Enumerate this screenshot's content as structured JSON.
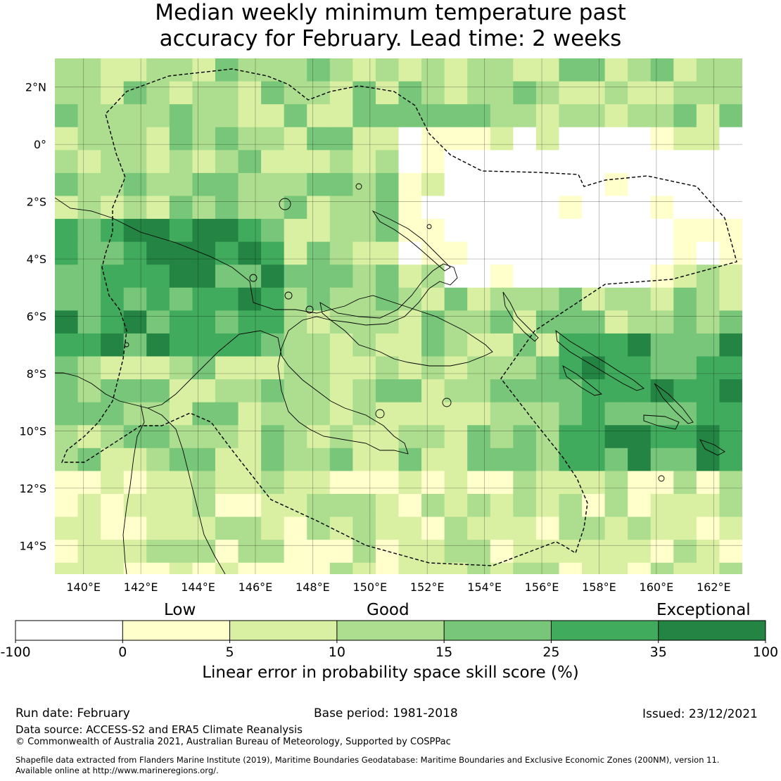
{
  "title": {
    "line1": "Median weekly minimum temperature past",
    "line2": "accuracy for February. Lead time: 2 weeks"
  },
  "map": {
    "lon_ticks": [
      "140°E",
      "142°E",
      "144°E",
      "146°E",
      "148°E",
      "150°E",
      "152°E",
      "154°E",
      "156°E",
      "158°E",
      "160°E",
      "162°E"
    ],
    "lat_ticks": [
      "2°N",
      "0°",
      "2°S",
      "4°S",
      "6°S",
      "8°S",
      "10°S",
      "12°S",
      "14°S"
    ],
    "extent": {
      "lon": [
        139,
        163
      ],
      "lat": [
        -15,
        3
      ]
    }
  },
  "colorbar": {
    "categories": [
      "Low",
      "Good",
      "Exceptional"
    ],
    "ticks": [
      "-100",
      "0",
      "5",
      "10",
      "15",
      "25",
      "35",
      "100"
    ],
    "bins": [
      {
        "range": "-100 to 0",
        "color": "#ffffff"
      },
      {
        "range": "0 to 5",
        "color": "#ffffcc"
      },
      {
        "range": "5 to 10",
        "color": "#d9f0a3"
      },
      {
        "range": "10 to 15",
        "color": "#addd8e"
      },
      {
        "range": "15 to 25",
        "color": "#78c679"
      },
      {
        "range": "25 to 35",
        "color": "#41ab5d"
      },
      {
        "range": "35 to 100",
        "color": "#238443"
      }
    ],
    "label": "Linear error in probability space skill score (%)"
  },
  "footer": {
    "run_date": "Run date: February",
    "base_period": "Base period: 1981-2018",
    "issued": "Issued: 23/12/2021",
    "data_source": "Data source: ACCESS-S2 and ERA5 Climate Reanalysis",
    "copyright": "© Commonwealth of Australia 2021, Australian Bureau of Meteorology, Supported by COSPPac",
    "shapefile_line1": "Shapefile data extracted from Flanders Marine Institute (2019), Maritime Boundaries Geodatabase: Maritime Boundaries and Exclusive Economic Zones (200NM), version 11.",
    "shapefile_line2": "Available online at http://www.marineregions.org/."
  }
}
